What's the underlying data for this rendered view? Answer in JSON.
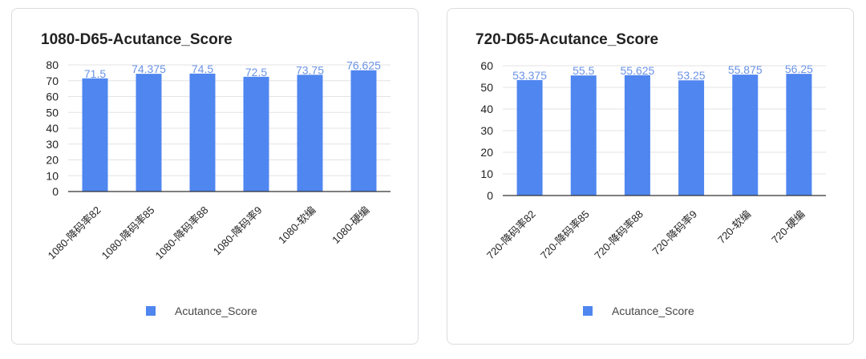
{
  "chart_data": [
    {
      "type": "bar",
      "title": "1080-D65-Acutance_Score",
      "categories": [
        "1080-降码率82",
        "1080-降码率85",
        "1080-降码率88",
        "1080-降码率9",
        "1080-软编",
        "1080-硬编"
      ],
      "series": [
        {
          "name": "Acutance_Score",
          "values": [
            71.5,
            74.375,
            74.5,
            72.5,
            73.75,
            76.625
          ],
          "labels": [
            "71.5",
            "74.375",
            "74.5",
            "72.5",
            "73.75",
            "76.625"
          ]
        }
      ],
      "yticks": [
        "0",
        "10",
        "20",
        "30",
        "40",
        "50",
        "60",
        "70",
        "80"
      ],
      "ylim": [
        0,
        80
      ],
      "grid": true,
      "legend": "bottom",
      "xlabel": "",
      "ylabel": ""
    },
    {
      "type": "bar",
      "title": "720-D65-Acutance_Score",
      "categories": [
        "720-降码率82",
        "720-降码率85",
        "720-降码率88",
        "720-降码率9",
        "720-软编",
        "720-硬编"
      ],
      "series": [
        {
          "name": "Acutance_Score",
          "values": [
            53.375,
            55.5,
            55.625,
            53.25,
            55.875,
            56.25
          ],
          "labels": [
            "53.375",
            "55.5",
            "55.625",
            "53.25",
            "55.875",
            "56.25"
          ]
        }
      ],
      "yticks": [
        "0",
        "10",
        "20",
        "30",
        "40",
        "50",
        "60"
      ],
      "ylim": [
        0,
        60
      ],
      "grid": true,
      "legend": "bottom",
      "xlabel": "",
      "ylabel": ""
    }
  ],
  "colors": {
    "bar": "#4f86f0",
    "data_label": "#6b93e6",
    "grid": "#e3e3e3",
    "axis": "#333333",
    "text": "#222222"
  }
}
